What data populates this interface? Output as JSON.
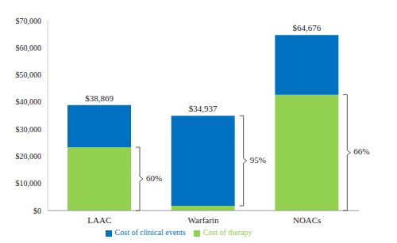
{
  "chart_data": {
    "type": "bar",
    "categories": [
      "LAAC",
      "Warfarin",
      "NOACs"
    ],
    "series": [
      {
        "name": "Cost of therapy",
        "color": "#92d050",
        "values": [
          23321,
          1747,
          42686
        ]
      },
      {
        "name": "Cost of clinical events",
        "color": "#0070c0",
        "values": [
          15548,
          33190,
          21990
        ]
      }
    ],
    "total_labels": [
      "$38,869",
      "$34,937",
      "$64,676"
    ],
    "annotations": [
      {
        "category": "LAAC",
        "series": "Cost of therapy",
        "text": "60%"
      },
      {
        "category": "Warfarin",
        "series": "Cost of clinical events",
        "text": "95%"
      },
      {
        "category": "NOACs",
        "series": "Cost of therapy",
        "text": "66%"
      }
    ],
    "ylim": [
      0,
      70000
    ],
    "yticks": [
      {
        "value": 0,
        "label": "$0"
      },
      {
        "value": 10000,
        "label": "$10,000"
      },
      {
        "value": 20000,
        "label": "$20,000"
      },
      {
        "value": 30000,
        "label": "$30,000"
      },
      {
        "value": 40000,
        "label": "$40,000"
      },
      {
        "value": 50000,
        "label": "$50,000"
      },
      {
        "value": 60000,
        "label": "$60,000"
      },
      {
        "value": 70000,
        "label": "$70,000"
      }
    ],
    "stacked": true,
    "grid": false,
    "legend": "bottom"
  }
}
